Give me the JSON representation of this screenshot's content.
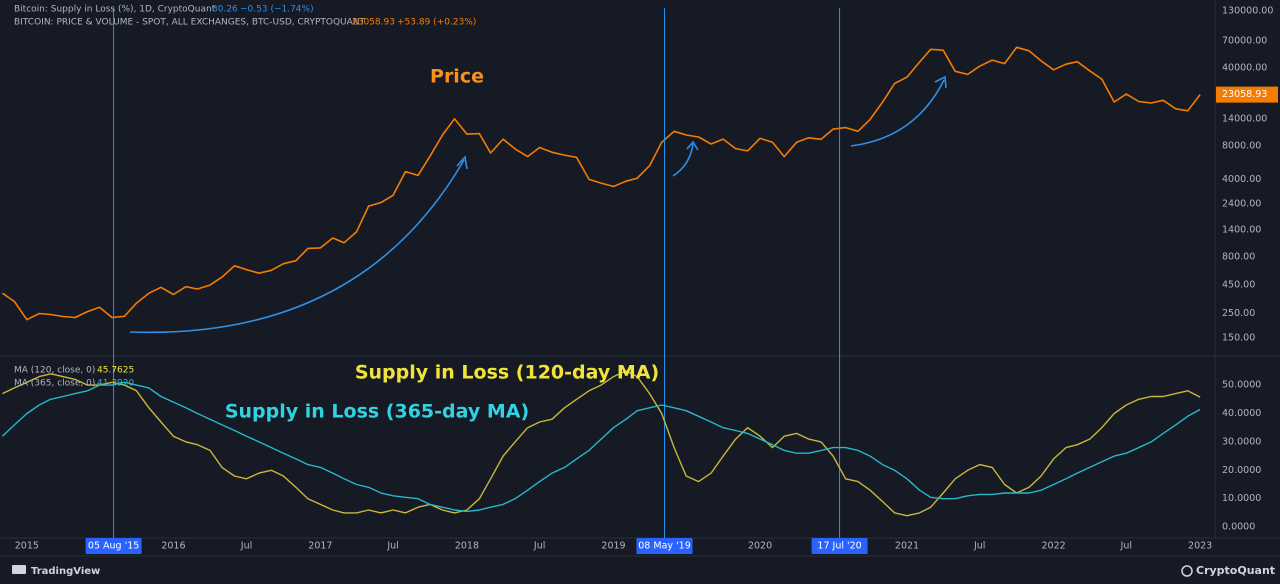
{
  "header": {
    "line1": {
      "name": "Bitcoin: Supply in Loss (%), 1D, CryptoQuant",
      "value": "30.26",
      "change": "−0.53 (−1.74%)"
    },
    "line2": {
      "name": "BITCOIN: PRICE & VOLUME - SPOT, ALL EXCHANGES, BTC-USD, CRYPTOQUANT",
      "value": "23058.93",
      "change": "+53.89 (+0.23%)"
    }
  },
  "footer": {
    "left": "TradingView",
    "right": "CryptoQuant"
  },
  "chart_data": [
    {
      "type": "line",
      "log_scale": true,
      "annotation": "Price",
      "last_value_label": "23058.93",
      "xlim": [
        "2014-11-15",
        "2023-02-07"
      ],
      "ylim": [
        106,
        163000
      ],
      "yticks": [
        {
          "value": 130000,
          "label": "130000.00"
        },
        {
          "value": 70000,
          "label": "70000.00"
        },
        {
          "value": 40000,
          "label": "40000.00"
        },
        {
          "value": 14000,
          "label": "14000.00"
        },
        {
          "value": 8000,
          "label": "8000.00"
        },
        {
          "value": 4000,
          "label": "4000.00"
        },
        {
          "value": 2400,
          "label": "2400.00"
        },
        {
          "value": 1400,
          "label": "1400.00"
        },
        {
          "value": 800,
          "label": "800.00"
        },
        {
          "value": 450,
          "label": "450.00"
        },
        {
          "value": 250,
          "label": "250.00"
        },
        {
          "value": 150,
          "label": "150.00"
        }
      ],
      "x": [
        "2014-11",
        "2014-12",
        "2015-01",
        "2015-02",
        "2015-03",
        "2015-04",
        "2015-05",
        "2015-06",
        "2015-07",
        "2015-08",
        "2015-09",
        "2015-10",
        "2015-11",
        "2015-12",
        "2016-01",
        "2016-02",
        "2016-03",
        "2016-04",
        "2016-05",
        "2016-06",
        "2016-07",
        "2016-08",
        "2016-09",
        "2016-10",
        "2016-11",
        "2016-12",
        "2017-01",
        "2017-02",
        "2017-03",
        "2017-04",
        "2017-05",
        "2017-06",
        "2017-07",
        "2017-08",
        "2017-09",
        "2017-10",
        "2017-11",
        "2017-12",
        "2018-01",
        "2018-02",
        "2018-03",
        "2018-04",
        "2018-05",
        "2018-06",
        "2018-07",
        "2018-08",
        "2018-09",
        "2018-10",
        "2018-11",
        "2018-12",
        "2019-01",
        "2019-02",
        "2019-03",
        "2019-04",
        "2019-05",
        "2019-06",
        "2019-07",
        "2019-08",
        "2019-09",
        "2019-10",
        "2019-11",
        "2019-12",
        "2020-01",
        "2020-02",
        "2020-03",
        "2020-04",
        "2020-05",
        "2020-06",
        "2020-07",
        "2020-08",
        "2020-09",
        "2020-10",
        "2020-11",
        "2020-12",
        "2021-01",
        "2021-02",
        "2021-03",
        "2021-04",
        "2021-05",
        "2021-06",
        "2021-07",
        "2021-08",
        "2021-09",
        "2021-10",
        "2021-11",
        "2021-12",
        "2022-01",
        "2022-02",
        "2022-03",
        "2022-04",
        "2022-05",
        "2022-06",
        "2022-07",
        "2022-08",
        "2022-09",
        "2022-10",
        "2022-11",
        "2022-12",
        "2023-01"
      ],
      "series": [
        {
          "name": "BITCOIN: PRICE & VOLUME - SPOT, ALL EXCHANGES, BTC-USD, CRYPTOQUANT",
          "color": "#f57c00",
          "values": [
            380,
            320,
            220,
            250,
            245,
            235,
            230,
            260,
            285,
            230,
            236,
            310,
            380,
            430,
            370,
            435,
            415,
            450,
            530,
            670,
            620,
            575,
            610,
            700,
            745,
            960,
            970,
            1190,
            1080,
            1350,
            2300,
            2480,
            2880,
            4700,
            4340,
            6450,
            10000,
            14000,
            10200,
            10300,
            6900,
            9200,
            7500,
            6400,
            7730,
            7000,
            6600,
            6300,
            4000,
            3700,
            3450,
            3850,
            4100,
            5300,
            8600,
            10800,
            10000,
            9600,
            8300,
            9200,
            7550,
            7200,
            9350,
            8600,
            6400,
            8600,
            9450,
            9150,
            11300,
            11650,
            10800,
            13800,
            19700,
            29000,
            33100,
            45200,
            58800,
            57700,
            37300,
            35000,
            41500,
            47100,
            43800,
            61300,
            57000,
            46300,
            38500,
            43200,
            45500,
            37700,
            31800,
            19800,
            23300,
            20000,
            19400,
            20500,
            17200,
            16500,
            23058.93
          ]
        }
      ]
    },
    {
      "type": "line",
      "xlim": [
        "2014-11-15",
        "2023-02-07"
      ],
      "ylim": [
        -3.5,
        59.9
      ],
      "yticks": [
        {
          "value": 50,
          "label": "50.0000"
        },
        {
          "value": 40,
          "label": "40.0000"
        },
        {
          "value": 30,
          "label": "30.0000"
        },
        {
          "value": 20,
          "label": "20.0000"
        },
        {
          "value": 10,
          "label": "10.0000"
        },
        {
          "value": 0,
          "label": "0.0000"
        }
      ],
      "xticks": [
        {
          "value": "2015-01",
          "label": "2015"
        },
        {
          "value": "2016-01",
          "label": "2016"
        },
        {
          "value": "2016-07",
          "label": "Jul"
        },
        {
          "value": "2017-01",
          "label": "2017"
        },
        {
          "value": "2017-07",
          "label": "Jul"
        },
        {
          "value": "2018-01",
          "label": "2018"
        },
        {
          "value": "2018-07",
          "label": "Jul"
        },
        {
          "value": "2019-01",
          "label": "2019"
        },
        {
          "value": "2020-01",
          "label": "2020"
        },
        {
          "value": "2021-01",
          "label": "2021"
        },
        {
          "value": "2021-07",
          "label": "Jul"
        },
        {
          "value": "2022-01",
          "label": "2022"
        },
        {
          "value": "2022-07",
          "label": "Jul"
        },
        {
          "value": "2023-01",
          "label": "2023"
        }
      ],
      "markers": [
        {
          "value": "2015-08-05",
          "label": "05 Aug '15"
        },
        {
          "value": "2019-05-08",
          "label": "08 May '19"
        },
        {
          "value": "2020-07-17",
          "label": "17 Jul '20"
        }
      ],
      "x": [
        "2014-11",
        "2014-12",
        "2015-01",
        "2015-02",
        "2015-03",
        "2015-04",
        "2015-05",
        "2015-06",
        "2015-07",
        "2015-08",
        "2015-09",
        "2015-10",
        "2015-11",
        "2015-12",
        "2016-01",
        "2016-02",
        "2016-03",
        "2016-04",
        "2016-05",
        "2016-06",
        "2016-07",
        "2016-08",
        "2016-09",
        "2016-10",
        "2016-11",
        "2016-12",
        "2017-01",
        "2017-02",
        "2017-03",
        "2017-04",
        "2017-05",
        "2017-06",
        "2017-07",
        "2017-08",
        "2017-09",
        "2017-10",
        "2017-11",
        "2017-12",
        "2018-01",
        "2018-02",
        "2018-03",
        "2018-04",
        "2018-05",
        "2018-06",
        "2018-07",
        "2018-08",
        "2018-09",
        "2018-10",
        "2018-11",
        "2018-12",
        "2019-01",
        "2019-02",
        "2019-03",
        "2019-04",
        "2019-05",
        "2019-06",
        "2019-07",
        "2019-08",
        "2019-09",
        "2019-10",
        "2019-11",
        "2019-12",
        "2020-01",
        "2020-02",
        "2020-03",
        "2020-04",
        "2020-05",
        "2020-06",
        "2020-07",
        "2020-08",
        "2020-09",
        "2020-10",
        "2020-11",
        "2020-12",
        "2021-01",
        "2021-02",
        "2021-03",
        "2021-04",
        "2021-05",
        "2021-06",
        "2021-07",
        "2021-08",
        "2021-09",
        "2021-10",
        "2021-11",
        "2021-12",
        "2022-01",
        "2022-02",
        "2022-03",
        "2022-04",
        "2022-05",
        "2022-06",
        "2022-07",
        "2022-08",
        "2022-09",
        "2022-10",
        "2022-11",
        "2022-12",
        "2023-01"
      ],
      "series": [
        {
          "name": "MA (120, close, 0)",
          "legend_value": "45.7625",
          "annotation": "Supply in Loss (120-day MA)",
          "color": "#c9b83a",
          "values": [
            47,
            49,
            51,
            53,
            54,
            53,
            52,
            50,
            50,
            51,
            50,
            48,
            42,
            37,
            32,
            30,
            29,
            27,
            21,
            18,
            17,
            19,
            20,
            18,
            14,
            10,
            8,
            6,
            5,
            5,
            6,
            5,
            6,
            5,
            7,
            8,
            6,
            5,
            6,
            10,
            17,
            25,
            30,
            35,
            37,
            38,
            42,
            45,
            48,
            50,
            53,
            55,
            53,
            47,
            40,
            28,
            18,
            16,
            19,
            25,
            31,
            35,
            32,
            28,
            32,
            33,
            31,
            30,
            25,
            17,
            16,
            13,
            9,
            5,
            4,
            5,
            7,
            12,
            17,
            20,
            22,
            21,
            15,
            12,
            14,
            18,
            24,
            28,
            29,
            31,
            35,
            40,
            43,
            45,
            46,
            46,
            47,
            48,
            45.7625
          ]
        },
        {
          "name": "MA (365, close, 0)",
          "legend_value": "41.3920",
          "annotation": "Supply in Loss (365-day MA)",
          "color": "#26b8c8",
          "values": [
            32,
            36,
            40,
            43,
            45,
            46,
            47,
            48,
            50,
            50,
            51,
            50,
            49,
            46,
            44,
            42,
            40,
            38,
            36,
            34,
            32,
            30,
            28,
            26,
            24,
            22,
            21,
            19,
            17,
            15,
            14,
            12,
            11,
            10.5,
            10,
            8,
            7,
            6,
            5.5,
            6,
            7,
            8,
            10,
            13,
            16,
            19,
            21,
            24,
            27,
            31,
            35,
            38,
            41,
            42,
            43,
            42,
            41,
            39,
            37,
            35,
            34,
            33,
            31,
            29,
            27,
            26,
            26,
            27,
            28,
            28,
            27,
            25,
            22,
            20,
            17,
            13,
            10.5,
            10,
            10,
            11,
            11.5,
            11.5,
            12,
            12,
            12,
            13,
            15,
            17,
            19,
            21,
            23,
            25,
            26,
            28,
            30,
            33,
            36,
            39,
            41.392
          ]
        }
      ]
    }
  ]
}
